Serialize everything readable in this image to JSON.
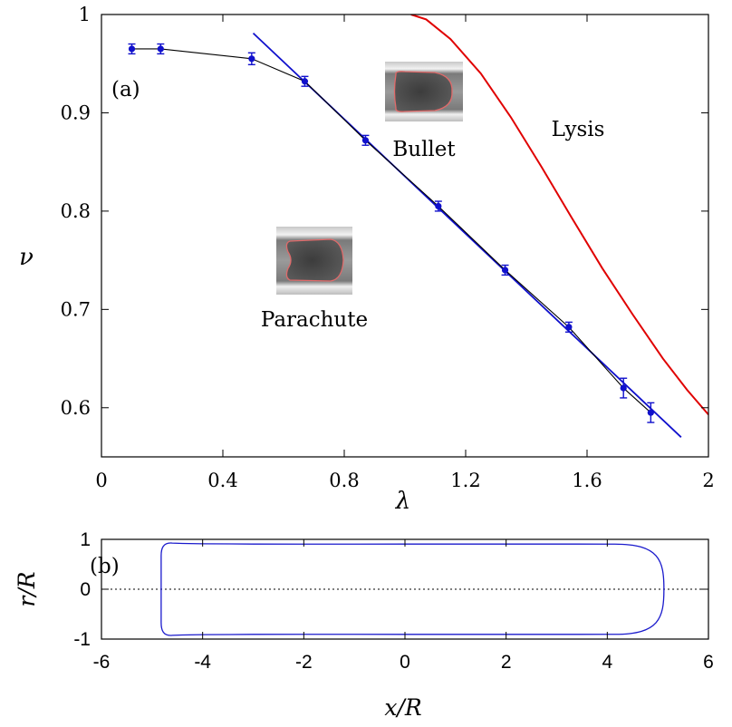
{
  "chart_data": [
    {
      "type": "line",
      "panel_label": "(a)",
      "xlabel": "λ",
      "ylabel": "ν",
      "xlim": [
        0,
        2
      ],
      "ylim": [
        0.55,
        1.0
      ],
      "xticks": [
        "0",
        "0.4",
        "0.8",
        "1.2",
        "1.6",
        "2"
      ],
      "xtick_values": [
        0,
        0.4,
        0.8,
        1.2,
        1.6,
        2.0
      ],
      "yticks": [
        "0.6",
        "0.7",
        "0.8",
        "0.9",
        "1"
      ],
      "ytick_values": [
        0.6,
        0.7,
        0.8,
        0.9,
        1.0
      ],
      "grid": false,
      "annotations": [
        "Bullet",
        "Parachute",
        "Lysis"
      ],
      "series": [
        {
          "kind": "data-with-errorbars",
          "color": "#1010cc",
          "line_color": "#000000",
          "x": [
            0.1,
            0.195,
            0.495,
            0.67,
            0.87,
            1.11,
            1.33,
            1.54,
            1.72,
            1.81
          ],
          "y": [
            0.965,
            0.965,
            0.955,
            0.932,
            0.872,
            0.805,
            0.74,
            0.682,
            0.62,
            0.595
          ],
          "err": [
            0.005,
            0.005,
            0.006,
            0.005,
            0.005,
            0.005,
            0.005,
            0.005,
            0.01,
            0.01
          ]
        },
        {
          "kind": "linear-fit",
          "color": "#1010cc",
          "x": [
            0.5,
            1.91
          ],
          "y": [
            0.981,
            0.57
          ]
        },
        {
          "kind": "lysis-curve",
          "color": "#e00000",
          "x": [
            1.02,
            1.07,
            1.15,
            1.25,
            1.35,
            1.45,
            1.55,
            1.65,
            1.75,
            1.85,
            1.93,
            2.0
          ],
          "y": [
            1.0,
            0.995,
            0.975,
            0.94,
            0.895,
            0.845,
            0.793,
            0.742,
            0.695,
            0.65,
            0.618,
            0.593
          ]
        }
      ]
    },
    {
      "type": "line",
      "panel_label": "(b)",
      "xlabel": "x/R",
      "ylabel": "r/R",
      "xlim": [
        -6,
        6
      ],
      "ylim": [
        -1,
        1
      ],
      "xticks": [
        "-6",
        "-4",
        "-2",
        "0",
        "2",
        "4",
        "6"
      ],
      "xtick_values": [
        -6,
        -4,
        -2,
        0,
        2,
        4,
        6
      ],
      "yticks": [
        "-1",
        "0",
        "1"
      ],
      "ytick_values": [
        -1,
        0,
        1
      ],
      "grid": false,
      "series": [
        {
          "kind": "cell-contour",
          "color": "#1a1acc",
          "x_rear": -4.82,
          "x_front": 5.12,
          "upper_x": [
            -4.6,
            -4.4,
            -4.0,
            -3.0,
            -2.0,
            -1.0,
            0.0,
            1.0,
            2.0,
            3.0,
            4.0,
            4.15
          ],
          "upper_y": [
            0.925,
            0.918,
            0.912,
            0.906,
            0.905,
            0.905,
            0.906,
            0.906,
            0.906,
            0.906,
            0.905,
            0.905
          ]
        },
        {
          "kind": "axis-line",
          "color": "#000000",
          "x": [
            -6,
            6
          ],
          "y": [
            0,
            0
          ]
        }
      ]
    }
  ]
}
